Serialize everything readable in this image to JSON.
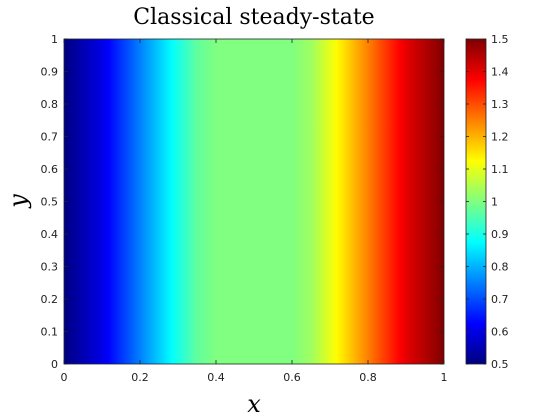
{
  "chart_data": {
    "type": "heatmap",
    "title": "Classical steady-state",
    "xlabel": "x",
    "ylabel": "y",
    "xlim": [
      0,
      1
    ],
    "ylim": [
      0,
      1
    ],
    "x_ticks": [
      "0",
      "0.2",
      "0.4",
      "0.6",
      "0.8",
      "1"
    ],
    "y_ticks": [
      "0",
      "0.1",
      "0.2",
      "0.3",
      "0.4",
      "0.5",
      "0.6",
      "0.7",
      "0.8",
      "0.9",
      "1"
    ],
    "colormap": "jet",
    "clim": [
      0.5,
      1.5
    ],
    "colorbar_ticks": [
      "0.5",
      "0.6",
      "0.7",
      "0.8",
      "0.9",
      "1",
      "1.1",
      "1.2",
      "1.3",
      "1.4",
      "1.5"
    ],
    "colorbar_position": "right",
    "field_profile": {
      "x": [
        0.0,
        0.1,
        0.2,
        0.3,
        0.35,
        0.4,
        0.5,
        0.6,
        0.65,
        0.7,
        0.8,
        0.9,
        1.0
      ],
      "value": [
        0.5,
        0.6,
        0.75,
        0.9,
        0.97,
        1.0,
        1.0,
        1.0,
        1.03,
        1.1,
        1.25,
        1.4,
        1.5
      ]
    }
  }
}
